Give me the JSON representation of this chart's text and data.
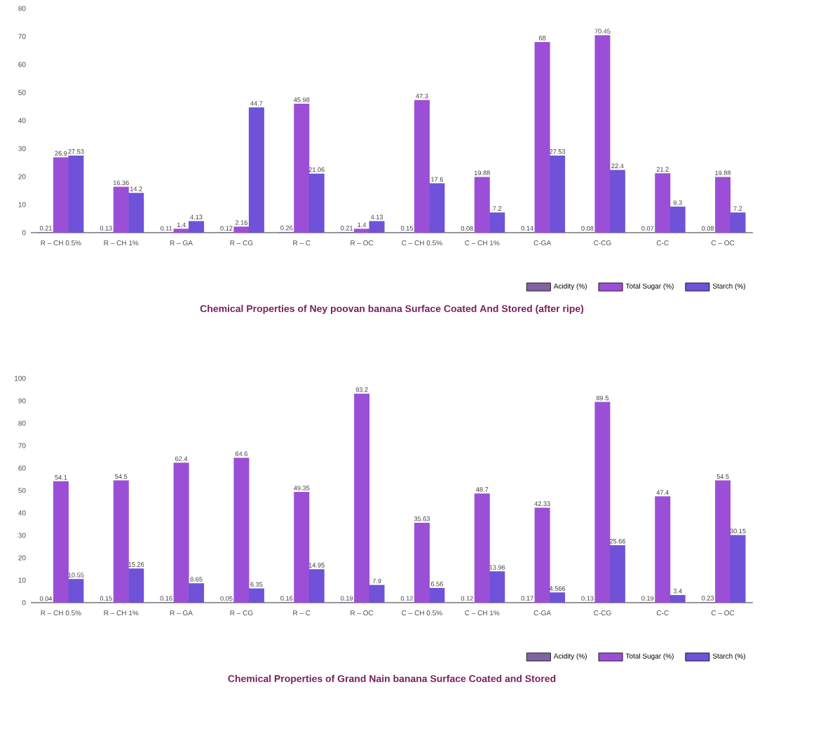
{
  "chart_data": [
    {
      "type": "bar",
      "title": "Chemical Properties of Ney poovan banana Surface Coated And Stored (after ripe)",
      "categories": [
        "R – CH 0.5%",
        "R – CH 1%",
        "R – GA",
        "R – CG",
        "R – C",
        "R – OC",
        "C – CH 0.5%",
        "C – CH 1%",
        "C-GA",
        "C-CG",
        "C-C",
        "C – OC"
      ],
      "series": [
        {
          "name": "Acidity (%)",
          "color": "#8064a2",
          "values": [
            0.21,
            0.13,
            0.11,
            0.12,
            0.26,
            0.21,
            0.15,
            0.08,
            0.14,
            0.08,
            0.07,
            0.08
          ]
        },
        {
          "name": "Total Sugar (%)",
          "color": "#9b4fd6",
          "values": [
            26.9,
            16.36,
            1.4,
            2.16,
            45.98,
            1.4,
            47.3,
            19.88,
            68,
            70.45,
            21.2,
            19.88
          ]
        },
        {
          "name": "Starch (%)",
          "color": "#6f52d8",
          "values": [
            27.53,
            14.2,
            4.13,
            44.7,
            21.06,
            4.13,
            17.6,
            7.2,
            27.53,
            22.4,
            9.3,
            7.2
          ]
        }
      ],
      "ylim": [
        0,
        80
      ],
      "yticks": [
        0,
        10,
        20,
        30,
        40,
        50,
        60,
        70,
        80
      ],
      "data_labels": true,
      "legend": "bottom right",
      "grid": false
    },
    {
      "type": "bar",
      "title": "Chemical Properties of Grand Nain banana Surface Coated and Stored",
      "categories": [
        "R – CH 0.5%",
        "R – CH 1%",
        "R – GA",
        "R – CG",
        "R – C",
        "R – OC",
        "C – CH 0.5%",
        "C – CH 1%",
        "C-GA",
        "C-CG",
        "C-C",
        "C – OC"
      ],
      "series": [
        {
          "name": "Acidity (%)",
          "color": "#8064a2",
          "values": [
            0.04,
            0.15,
            0.16,
            0.05,
            0.16,
            0.19,
            0.12,
            0.12,
            0.17,
            0.13,
            0.19,
            0.23
          ]
        },
        {
          "name": "Total Sugar (%)",
          "color": "#9b4fd6",
          "values": [
            54.1,
            54.5,
            62.4,
            64.6,
            49.35,
            93.2,
            35.63,
            48.7,
            42.33,
            89.5,
            47.4,
            54.5
          ]
        },
        {
          "name": "Starch (%)",
          "color": "#6f52d8",
          "values": [
            10.55,
            15.26,
            8.65,
            6.35,
            14.95,
            7.9,
            6.56,
            13.96,
            4.566,
            25.66,
            3.4,
            30.15
          ]
        }
      ],
      "ylim": [
        0,
        100
      ],
      "yticks": [
        0,
        10,
        20,
        30,
        40,
        50,
        60,
        70,
        80,
        90,
        100
      ],
      "data_labels": true,
      "legend": "bottom right",
      "grid": false
    }
  ]
}
